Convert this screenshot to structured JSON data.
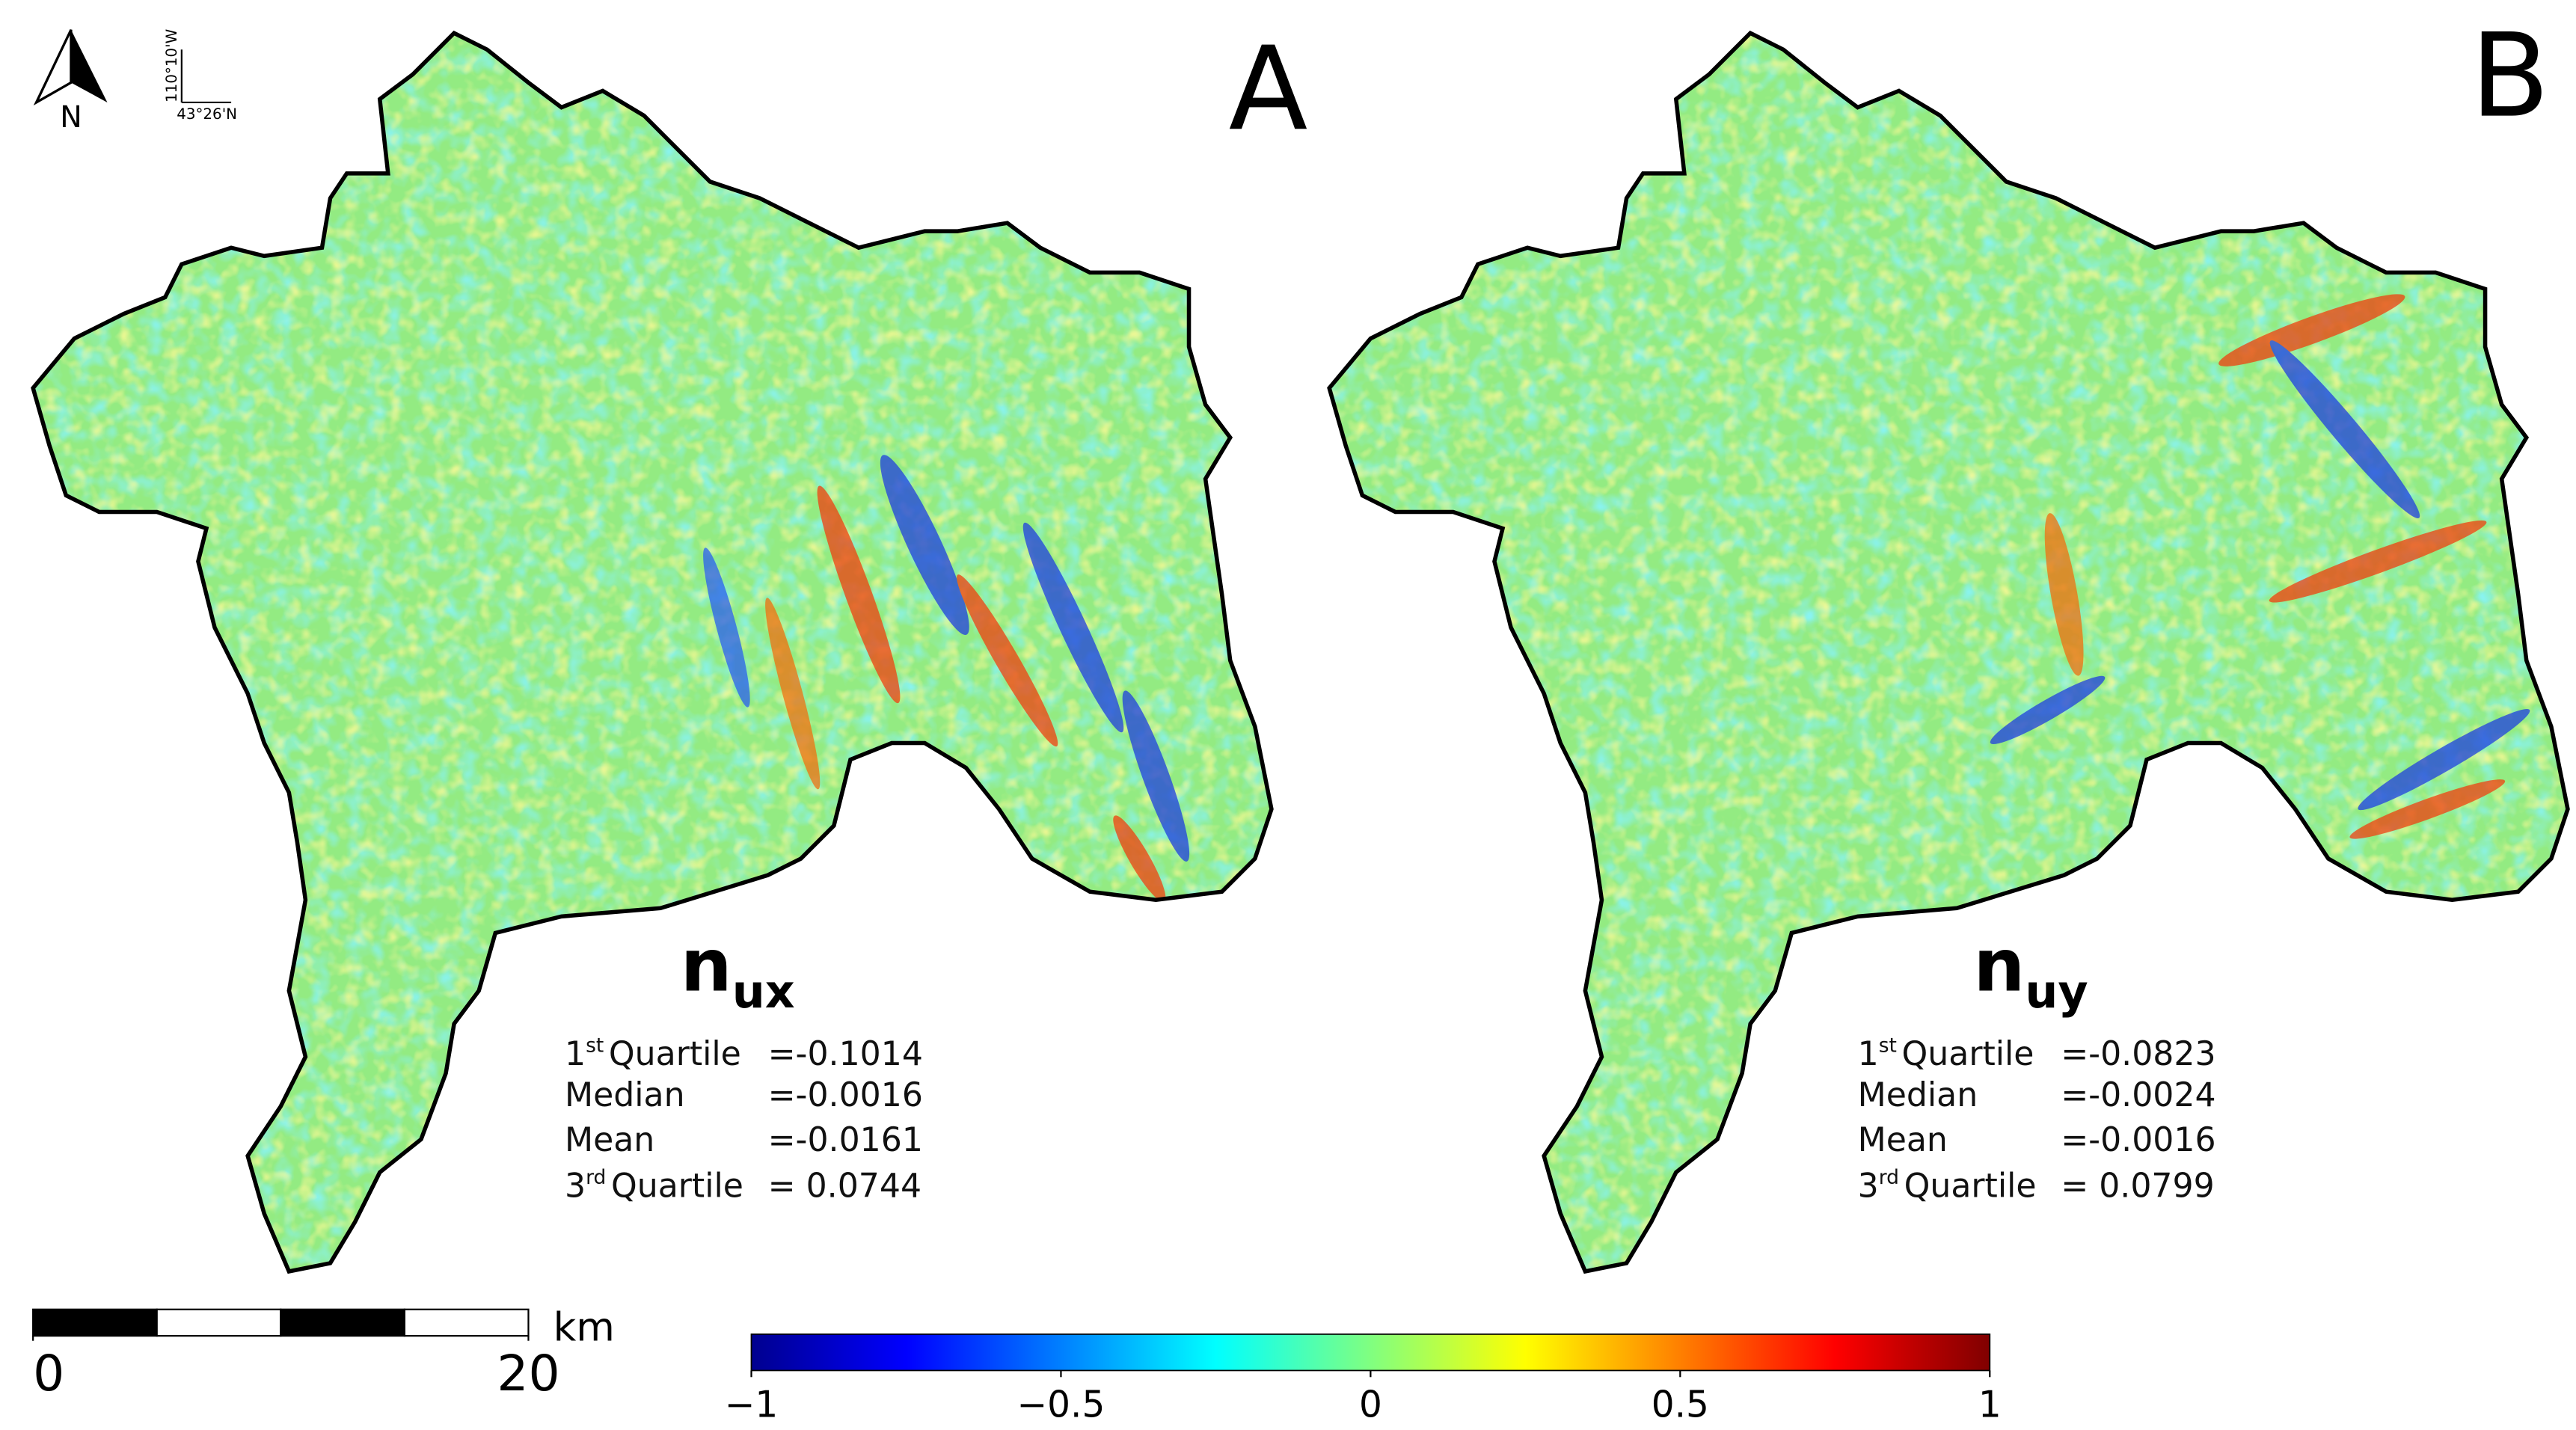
{
  "panels": [
    {
      "label": "A",
      "variable": {
        "base": "n",
        "sub": "ux"
      },
      "stats": [
        {
          "sup_num": "1",
          "sup": "st",
          "name": "Quartile",
          "value": "=-0.1014"
        },
        {
          "name": "Median",
          "value": "=-0.0016"
        },
        {
          "name": "Mean",
          "value": "=-0.0161"
        },
        {
          "sup_num": "3",
          "sup": "rd",
          "name": "Quartile",
          "value": "= 0.0744"
        }
      ]
    },
    {
      "label": "B",
      "variable": {
        "base": "n",
        "sub": "uy"
      },
      "stats": [
        {
          "sup_num": "1",
          "sup": "st",
          "name": "Quartile",
          "value": "=-0.0823"
        },
        {
          "name": "Median",
          "value": "=-0.0024"
        },
        {
          "name": "Mean",
          "value": "=-0.0016"
        },
        {
          "sup_num": "3",
          "sup": "rd",
          "name": "Quartile",
          "value": "= 0.0799"
        }
      ]
    }
  ],
  "north_arrow": "N",
  "coordinates": {
    "longitude": "110°10'W",
    "latitude": "43°26'N"
  },
  "scale_bar": {
    "unit": "km",
    "ticks": [
      0,
      20
    ]
  },
  "colorbar": {
    "range": [
      -1,
      1
    ],
    "ticks": [
      {
        "value": -1,
        "label": "−1"
      },
      {
        "value": -0.5,
        "label": "−0.5"
      },
      0,
      0.5,
      1
    ]
  }
}
